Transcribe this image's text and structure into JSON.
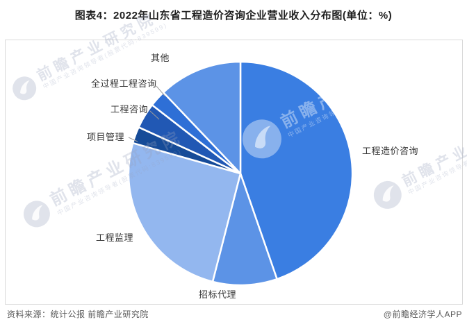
{
  "header": {
    "title": "图表4：2022年山东省工程造价咨询企业营业收入分布图(单位：%)"
  },
  "chart_data": {
    "type": "pie",
    "title": "2022年山东省工程造价咨询企业营业收入分布图",
    "unit": "%",
    "start_angle_deg": 0,
    "direction": "clockwise",
    "legend_position": "none",
    "labels_shown": "category names only, no percentage values displayed",
    "slice_gap_color": "#ffffff",
    "slices": [
      {
        "label": "工程造价咨询",
        "value": 44.7,
        "color": "#3a7ee2"
      },
      {
        "label": "招标代理",
        "value": 9.3,
        "color": "#5c93e6"
      },
      {
        "label": "工程监理",
        "value": 25.4,
        "color": "#93b7ef"
      },
      {
        "label": "项目管理",
        "value": 2.4,
        "color": "#164b98"
      },
      {
        "label": "工程咨询",
        "value": 3.7,
        "color": "#2158b4"
      },
      {
        "label": "全过程工程咨询",
        "value": 2.4,
        "color": "#2e6fd6"
      },
      {
        "label": "其他",
        "value": 12.1,
        "color": "#5c93e6"
      }
    ]
  },
  "watermark": {
    "brand": "前瞻产业研究院",
    "tagline": "中国产业咨询领导者(股票代码:839599)"
  },
  "footer": {
    "source": "资料来源：统计公报 前瞻产业研究院",
    "credit": "@前瞻经济学人APP"
  }
}
